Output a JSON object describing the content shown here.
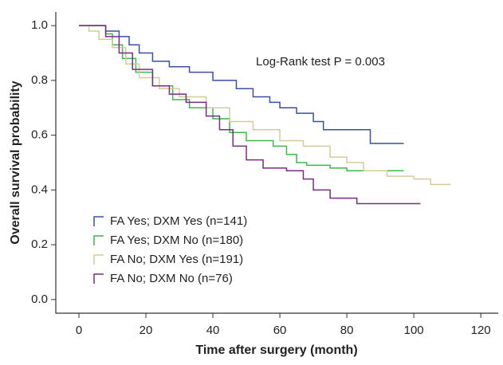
{
  "chart_data": {
    "type": "line",
    "step": true,
    "x_label": "Time after surgery (month)",
    "y_label": "Overall survival probability",
    "annotation": "Log-Rank test P = 0.003",
    "xlim": [
      -6.9,
      125.2
    ],
    "ylim": [
      -0.05,
      1.05
    ],
    "xticks": [
      0,
      20,
      40,
      60,
      80,
      100,
      120
    ],
    "yticks": [
      {
        "value": 0,
        "label": "0.0"
      },
      {
        "value": 0.2,
        "label": "0.2"
      },
      {
        "value": 0.4,
        "label": "0.4"
      },
      {
        "value": 0.6,
        "label": "0.6"
      },
      {
        "value": 0.8,
        "label": "0.8"
      },
      {
        "value": 1,
        "label": "1.0"
      }
    ],
    "legend": "lower-left",
    "series": [
      {
        "name": "FA Yes; DXM Yes (n=141)",
        "color": "#3a4fa8",
        "x": [
          0,
          6,
          8,
          12,
          15,
          18,
          22,
          27,
          33,
          40,
          47,
          52,
          57,
          60,
          65,
          70,
          73,
          80,
          86,
          87,
          97
        ],
        "values": [
          1,
          1,
          0.98,
          0.96,
          0.93,
          0.9,
          0.87,
          0.85,
          0.83,
          0.8,
          0.77,
          0.74,
          0.72,
          0.7,
          0.68,
          0.65,
          0.62,
          0.62,
          0.62,
          0.57,
          0.57
        ]
      },
      {
        "name": "FA Yes; DXM No (n=180)",
        "color": "#3cb94a",
        "x": [
          0,
          6,
          8,
          10,
          13,
          17,
          22,
          28,
          33,
          40,
          45,
          50,
          58,
          62,
          65,
          68,
          75,
          80,
          90,
          97
        ],
        "values": [
          1,
          1,
          0.97,
          0.93,
          0.88,
          0.83,
          0.78,
          0.73,
          0.7,
          0.66,
          0.61,
          0.58,
          0.56,
          0.53,
          0.5,
          0.49,
          0.48,
          0.47,
          0.47,
          0.47
        ]
      },
      {
        "name": "FA No; DXM Yes (n=191)",
        "color": "#d2cc98",
        "x": [
          0,
          3,
          6,
          10,
          14,
          18,
          24,
          30,
          38,
          45,
          52,
          60,
          67,
          75,
          80,
          85,
          92,
          100,
          105,
          111
        ],
        "values": [
          1,
          0.98,
          0.95,
          0.92,
          0.86,
          0.81,
          0.77,
          0.74,
          0.7,
          0.65,
          0.62,
          0.58,
          0.56,
          0.52,
          0.5,
          0.47,
          0.45,
          0.44,
          0.42,
          0.42
        ]
      },
      {
        "name": "FA No; DXM No (n=76)",
        "color": "#7a2b85",
        "x": [
          0,
          6,
          8,
          12,
          16,
          22,
          27,
          32,
          38,
          42,
          46,
          50,
          55,
          62,
          67,
          70,
          75,
          82,
          83,
          102
        ],
        "values": [
          1,
          1,
          0.96,
          0.9,
          0.84,
          0.78,
          0.75,
          0.72,
          0.67,
          0.62,
          0.56,
          0.51,
          0.48,
          0.47,
          0.44,
          0.4,
          0.37,
          0.37,
          0.35,
          0.35
        ]
      }
    ]
  }
}
